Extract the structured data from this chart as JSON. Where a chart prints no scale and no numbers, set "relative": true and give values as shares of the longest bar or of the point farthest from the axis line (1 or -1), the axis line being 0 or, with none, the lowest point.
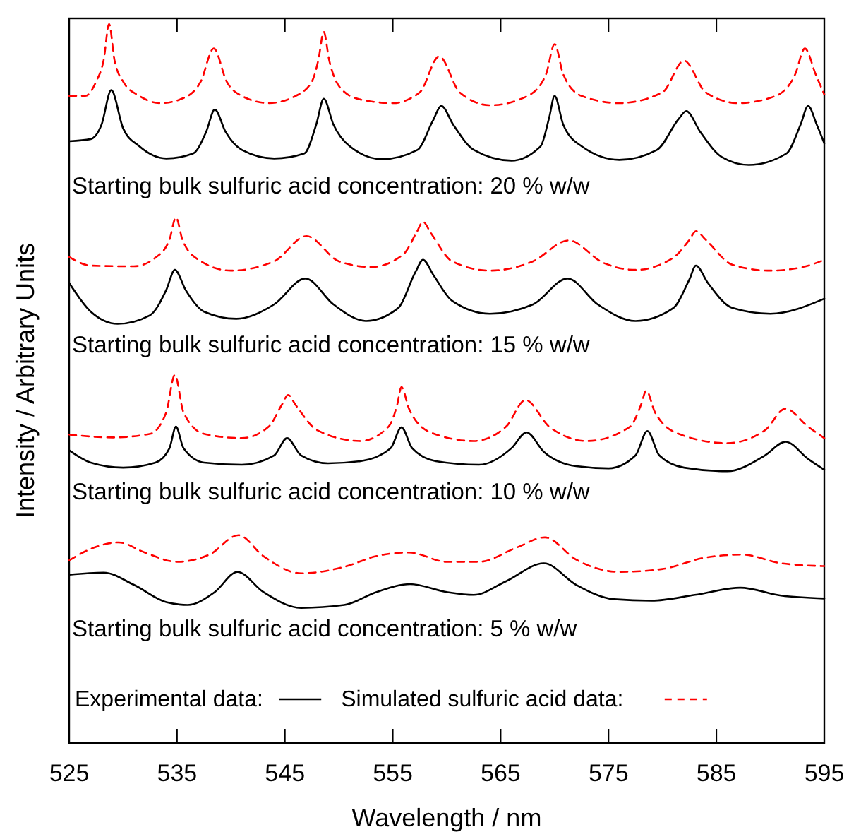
{
  "chart_data": {
    "type": "line",
    "relative": true,
    "xlabel": "Wavelength / nm",
    "ylabel": "Intensity / Arbitrary Units",
    "xlim": [
      525,
      595
    ],
    "xticks": [
      525,
      535,
      545,
      555,
      565,
      575,
      585,
      595
    ],
    "legend": "bottom",
    "annotations": [
      "Starting bulk sulfuric acid concentration: 20 % w/w",
      "Starting bulk sulfuric acid concentration: 15 % w/w",
      "Starting bulk sulfuric acid concentration: 10 % w/w",
      "Starting bulk sulfuric acid concentration: 5 % w/w"
    ],
    "series": [
      {
        "name": "Simulated sulfuric acid data:",
        "color": "#ff0000",
        "line_style": "dashed",
        "x": [
          525,
          526.5,
          527.5,
          528.2,
          528.7,
          529.2,
          530,
          531.5,
          533.5,
          536,
          537.2,
          538.4,
          539.6,
          541,
          543.5,
          546,
          547.5,
          548.1,
          548.6,
          549.1,
          550.2,
          552,
          555,
          557.5,
          559.3,
          561.2,
          564,
          567.5,
          569.2,
          570,
          570.8,
          572.5,
          576,
          580,
          582,
          584,
          587,
          590.5,
          592.3,
          593.2,
          594.2,
          595
        ],
        "values": [
          0.9,
          0.9,
          0.92,
          0.95,
          1.0,
          0.95,
          0.92,
          0.9,
          0.89,
          0.9,
          0.92,
          0.966,
          0.92,
          0.9,
          0.89,
          0.9,
          0.92,
          0.95,
          0.989,
          0.95,
          0.91,
          0.895,
          0.89,
          0.905,
          0.955,
          0.905,
          0.887,
          0.9,
          0.93,
          0.972,
          0.93,
          0.9,
          0.89,
          0.905,
          0.949,
          0.905,
          0.89,
          0.9,
          0.93,
          0.966,
          0.93,
          0.902
        ]
      },
      {
        "name": "Experimental data:",
        "color": "#000000",
        "line_style": "solid",
        "x": [
          525,
          527,
          528,
          528.9,
          530,
          531.5,
          534,
          536.5,
          537.7,
          538.5,
          539.5,
          541,
          544,
          546.8,
          547.9,
          548.6,
          549.5,
          551,
          554,
          557.3,
          558.7,
          559.5,
          560.6,
          562.5,
          566,
          568.7,
          569.5,
          570,
          570.8,
          572.5,
          576,
          579.5,
          581.5,
          582.2,
          583.5,
          585.5,
          588,
          591.5,
          592.8,
          593.5,
          594.3,
          595
        ],
        "values": [
          0.837,
          0.84,
          0.86,
          0.908,
          0.855,
          0.83,
          0.813,
          0.82,
          0.85,
          0.881,
          0.85,
          0.825,
          0.813,
          0.82,
          0.86,
          0.896,
          0.86,
          0.83,
          0.812,
          0.825,
          0.865,
          0.886,
          0.86,
          0.825,
          0.81,
          0.83,
          0.87,
          0.9,
          0.86,
          0.83,
          0.811,
          0.825,
          0.868,
          0.879,
          0.85,
          0.815,
          0.804,
          0.82,
          0.86,
          0.886,
          0.86,
          0.834
        ]
      },
      {
        "color": "#ff0000",
        "line_style": "dashed",
        "x": [
          525,
          527,
          531,
          533,
          534.3,
          534.9,
          535.5,
          537,
          540,
          544,
          547,
          550,
          553,
          556,
          557.2,
          557.8,
          558.5,
          560.5,
          564,
          568,
          571.3,
          574.5,
          577.5,
          581,
          582.5,
          583.1,
          584,
          586.5,
          590,
          593,
          595
        ],
        "values": [
          0.676,
          0.664,
          0.663,
          0.675,
          0.7,
          0.731,
          0.7,
          0.672,
          0.657,
          0.67,
          0.705,
          0.67,
          0.662,
          0.68,
          0.71,
          0.725,
          0.71,
          0.67,
          0.657,
          0.67,
          0.699,
          0.668,
          0.658,
          0.675,
          0.7,
          0.712,
          0.7,
          0.665,
          0.657,
          0.662,
          0.672
        ]
      },
      {
        "color": "#000000",
        "line_style": "solid",
        "x": [
          525,
          527,
          529.5,
          532.5,
          534,
          534.8,
          535.8,
          537.5,
          540.5,
          544,
          546.9,
          549.5,
          552.5,
          555.5,
          557.1,
          557.8,
          558.8,
          560.5,
          564,
          568,
          571.2,
          574,
          577.5,
          581,
          582.5,
          583.1,
          584.2,
          586.5,
          590,
          595
        ],
        "values": [
          0.64,
          0.6,
          0.583,
          0.595,
          0.63,
          0.658,
          0.63,
          0.6,
          0.59,
          0.61,
          0.646,
          0.61,
          0.587,
          0.605,
          0.655,
          0.672,
          0.65,
          0.615,
          0.597,
          0.61,
          0.646,
          0.61,
          0.587,
          0.605,
          0.645,
          0.664,
          0.64,
          0.605,
          0.597,
          0.618
        ]
      },
      {
        "color": "#ff0000",
        "line_style": "dashed",
        "x": [
          525,
          529,
          532.5,
          534,
          534.8,
          535.6,
          537.5,
          541,
          543.5,
          544.7,
          545.3,
          546,
          548,
          552,
          554.6,
          555.4,
          555.8,
          556.5,
          558.5,
          562.5,
          565.5,
          567.3,
          569.5,
          573,
          577,
          578,
          578.5,
          579.3,
          581.5,
          586,
          589.5,
          591.4,
          593.5,
          595
        ],
        "values": [
          0.429,
          0.425,
          0.43,
          0.46,
          0.512,
          0.46,
          0.43,
          0.424,
          0.44,
          0.47,
          0.484,
          0.47,
          0.435,
          0.42,
          0.44,
          0.47,
          0.495,
          0.465,
          0.432,
          0.42,
          0.44,
          0.477,
          0.44,
          0.42,
          0.44,
          0.47,
          0.49,
          0.46,
          0.43,
          0.417,
          0.435,
          0.465,
          0.44,
          0.424
        ]
      },
      {
        "color": "#000000",
        "line_style": "solid",
        "x": [
          525,
          527,
          530,
          533,
          534.3,
          534.9,
          535.6,
          537.5,
          541,
          544,
          545.2,
          546.5,
          549,
          552,
          554.8,
          555.8,
          556.8,
          559,
          563,
          566,
          567.4,
          569,
          572,
          575,
          577.5,
          578.6,
          579.7,
          582,
          586,
          589.5,
          591.4,
          593.5,
          595
        ],
        "values": [
          0.407,
          0.39,
          0.383,
          0.39,
          0.41,
          0.44,
          0.41,
          0.39,
          0.387,
          0.4,
          0.424,
          0.4,
          0.389,
          0.392,
          0.41,
          0.439,
          0.41,
          0.392,
          0.387,
          0.41,
          0.432,
          0.405,
          0.385,
          0.382,
          0.4,
          0.434,
          0.4,
          0.383,
          0.378,
          0.4,
          0.419,
          0.395,
          0.38
        ]
      },
      {
        "color": "#ff0000",
        "line_style": "dashed",
        "x": [
          525,
          527,
          529.6,
          532,
          535,
          538,
          540.7,
          543,
          546.5,
          550.5,
          553.5,
          556.5,
          560,
          563,
          566.5,
          569.1,
          572,
          576,
          580,
          584,
          587.4,
          591,
          595
        ],
        "values": [
          0.254,
          0.27,
          0.279,
          0.265,
          0.252,
          0.262,
          0.289,
          0.26,
          0.236,
          0.245,
          0.26,
          0.265,
          0.252,
          0.252,
          0.272,
          0.286,
          0.255,
          0.238,
          0.242,
          0.258,
          0.262,
          0.25,
          0.246
        ]
      },
      {
        "color": "#000000",
        "line_style": "solid",
        "x": [
          525,
          528.2,
          531,
          534,
          536,
          538.5,
          540.6,
          543,
          546.5,
          550.5,
          553.5,
          556.6,
          560,
          562.5,
          565.5,
          569,
          572,
          575.5,
          579,
          583,
          587.2,
          591,
          595
        ],
        "values": [
          0.234,
          0.237,
          0.22,
          0.196,
          0.192,
          0.21,
          0.238,
          0.21,
          0.188,
          0.192,
          0.21,
          0.221,
          0.21,
          0.206,
          0.225,
          0.25,
          0.22,
          0.2,
          0.198,
          0.206,
          0.216,
          0.205,
          0.201
        ]
      }
    ]
  }
}
